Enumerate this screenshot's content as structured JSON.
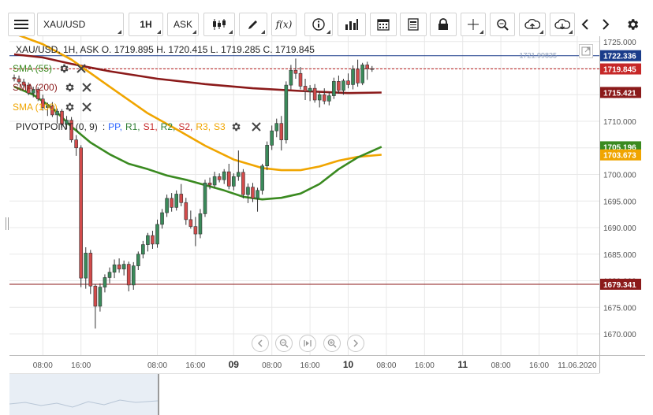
{
  "toolbar": {
    "symbol": "XAU/USD",
    "timeframe": "1H",
    "price_type": "ASK",
    "zoom_label": "Q"
  },
  "overlay": {
    "ohlc": "XAU/USD, 1H, ASK   O. 1719.895 H. 1720.415 L. 1719.285 C. 1719.845",
    "indicators": [
      {
        "label": "SMA (55)",
        "color": "#3a8a20"
      },
      {
        "label": "SMA (200)",
        "color": "#8b1a1a"
      },
      {
        "label": "SMA (100)",
        "color": "#f0a500"
      }
    ],
    "pivot": {
      "label": "PIVOTPOINT (0, 9)",
      "sep": ":",
      "parts": [
        {
          "text": "PP,",
          "color": "#2962ff"
        },
        {
          "text": "R1,",
          "color": "#2e7d32"
        },
        {
          "text": "S1,",
          "color": "#c62828"
        },
        {
          "text": "R2,",
          "color": "#2e7d32"
        },
        {
          "text": "S2,",
          "color": "#c62828"
        },
        {
          "text": "R3,",
          "color": "#f0a500"
        },
        {
          "text": "S3",
          "color": "#f0a500"
        }
      ]
    }
  },
  "chart_data": {
    "type": "candlestick",
    "symbol": "XAU/USD",
    "interval": "1H",
    "ylim": [
      1666,
      1726
    ],
    "y_ticks": [
      "1725.000",
      "1720.000",
      "1715.000",
      "1710.000",
      "1705.000",
      "1700.000",
      "1695.000",
      "1690.000",
      "1685.000",
      "1680.000",
      "1675.000",
      "1670.000"
    ],
    "x_ticks": [
      {
        "label": "08:00",
        "i": 6
      },
      {
        "label": "16:00",
        "i": 14
      },
      {
        "label": "08:00",
        "i": 30
      },
      {
        "label": "16:00",
        "i": 38
      },
      {
        "label": "09",
        "i": 46,
        "bold": true
      },
      {
        "label": "08:00",
        "i": 54
      },
      {
        "label": "16:00",
        "i": 62
      },
      {
        "label": "10",
        "i": 70,
        "bold": true
      },
      {
        "label": "08:00",
        "i": 78
      },
      {
        "label": "16:00",
        "i": 86
      },
      {
        "label": "11",
        "i": 94,
        "bold": true
      },
      {
        "label": "08:00",
        "i": 102
      },
      {
        "label": "16:00",
        "i": 110
      },
      {
        "label": "11.06.2020",
        "i": 118
      }
    ],
    "candles": [
      [
        1718.2,
        1718.8,
        1717.5,
        1718.0
      ],
      [
        1718.0,
        1718.6,
        1717.0,
        1717.4
      ],
      [
        1717.4,
        1718.0,
        1716.2,
        1716.8
      ],
      [
        1716.8,
        1717.3,
        1714.9,
        1715.3
      ],
      [
        1715.3,
        1716.5,
        1714.5,
        1716.0
      ],
      [
        1716.0,
        1716.4,
        1713.8,
        1714.2
      ],
      [
        1714.2,
        1715.0,
        1712.0,
        1712.6
      ],
      [
        1712.6,
        1713.5,
        1711.0,
        1712.9
      ],
      [
        1712.9,
        1713.6,
        1710.8,
        1711.2
      ],
      [
        1711.2,
        1712.4,
        1709.5,
        1711.9
      ],
      [
        1711.9,
        1712.3,
        1708.8,
        1709.4
      ],
      [
        1709.4,
        1711.0,
        1708.5,
        1710.2
      ],
      [
        1710.2,
        1710.8,
        1706.0,
        1706.5
      ],
      [
        1706.5,
        1707.4,
        1703.5,
        1705.0
      ],
      [
        1705.0,
        1705.5,
        1678.8,
        1680.5
      ],
      [
        1680.5,
        1686.3,
        1678.5,
        1685.2
      ],
      [
        1685.2,
        1685.8,
        1677.5,
        1679.0
      ],
      [
        1679.0,
        1679.4,
        1671.0,
        1675.2
      ],
      [
        1675.2,
        1679.5,
        1674.2,
        1678.8
      ],
      [
        1678.8,
        1681.2,
        1677.8,
        1680.6
      ],
      [
        1680.6,
        1682.5,
        1679.5,
        1681.6
      ],
      [
        1681.6,
        1684.0,
        1680.5,
        1683.0
      ],
      [
        1683.0,
        1684.2,
        1681.5,
        1682.2
      ],
      [
        1682.2,
        1683.8,
        1681.0,
        1683.1
      ],
      [
        1683.1,
        1683.6,
        1678.0,
        1679.2
      ],
      [
        1679.2,
        1683.5,
        1678.3,
        1682.8
      ],
      [
        1682.8,
        1685.5,
        1682.0,
        1685.0
      ],
      [
        1685.0,
        1687.5,
        1684.2,
        1686.8
      ],
      [
        1686.8,
        1689.0,
        1685.5,
        1688.5
      ],
      [
        1688.5,
        1689.4,
        1686.0,
        1686.9
      ],
      [
        1686.9,
        1691.5,
        1686.2,
        1690.6
      ],
      [
        1690.6,
        1693.5,
        1689.8,
        1692.8
      ],
      [
        1692.8,
        1696.2,
        1692.0,
        1695.5
      ],
      [
        1695.5,
        1696.5,
        1693.0,
        1693.8
      ],
      [
        1693.8,
        1697.0,
        1693.2,
        1696.3
      ],
      [
        1696.3,
        1698.2,
        1694.0,
        1694.7
      ],
      [
        1694.7,
        1695.6,
        1690.5,
        1691.5
      ],
      [
        1691.5,
        1693.2,
        1689.8,
        1690.2
      ],
      [
        1690.2,
        1692.0,
        1686.5,
        1688.8
      ],
      [
        1688.8,
        1693.5,
        1688.0,
        1692.6
      ],
      [
        1692.6,
        1699.0,
        1692.0,
        1698.4
      ],
      [
        1698.4,
        1699.4,
        1697.2,
        1698.0
      ],
      [
        1698.0,
        1700.5,
        1697.5,
        1699.6
      ],
      [
        1699.6,
        1700.2,
        1698.5,
        1699.0
      ],
      [
        1699.0,
        1701.0,
        1698.2,
        1700.5
      ],
      [
        1700.5,
        1702.0,
        1697.2,
        1697.8
      ],
      [
        1697.8,
        1700.2,
        1697.0,
        1699.6
      ],
      [
        1699.6,
        1704.5,
        1698.8,
        1700.4
      ],
      [
        1700.4,
        1701.0,
        1695.5,
        1696.2
      ],
      [
        1696.2,
        1698.3,
        1694.6,
        1697.6
      ],
      [
        1697.6,
        1698.4,
        1694.8,
        1695.5
      ],
      [
        1695.5,
        1697.5,
        1693.0,
        1697.0
      ],
      [
        1697.0,
        1702.0,
        1696.2,
        1701.6
      ],
      [
        1701.6,
        1706.2,
        1700.8,
        1705.5
      ],
      [
        1705.5,
        1709.2,
        1704.6,
        1708.2
      ],
      [
        1708.2,
        1710.5,
        1707.0,
        1709.6
      ],
      [
        1709.6,
        1711.0,
        1704.5,
        1706.5
      ],
      [
        1706.5,
        1717.5,
        1705.8,
        1716.8
      ],
      [
        1716.8,
        1720.6,
        1716.0,
        1719.6
      ],
      [
        1719.6,
        1721.8,
        1718.0,
        1719.0
      ],
      [
        1719.0,
        1720.2,
        1716.0,
        1716.6
      ],
      [
        1716.6,
        1718.0,
        1714.0,
        1715.6
      ],
      [
        1715.6,
        1716.8,
        1713.8,
        1716.2
      ],
      [
        1716.2,
        1717.0,
        1713.5,
        1714.0
      ],
      [
        1714.0,
        1715.6,
        1712.6,
        1715.0
      ],
      [
        1715.0,
        1716.2,
        1713.2,
        1713.8
      ],
      [
        1713.8,
        1715.5,
        1713.0,
        1714.8
      ],
      [
        1714.8,
        1718.2,
        1714.2,
        1717.5
      ],
      [
        1717.5,
        1718.6,
        1715.2,
        1715.8
      ],
      [
        1715.8,
        1718.0,
        1715.0,
        1717.6
      ],
      [
        1717.6,
        1719.0,
        1716.2,
        1716.9
      ],
      [
        1716.9,
        1720.5,
        1716.0,
        1719.8
      ],
      [
        1719.8,
        1721.6,
        1716.5,
        1717.2
      ],
      [
        1717.2,
        1721.0,
        1716.8,
        1720.6
      ],
      [
        1720.6,
        1721.2,
        1717.8,
        1719.9
      ],
      [
        1719.9,
        1720.4,
        1719.3,
        1719.8
      ]
    ],
    "sma200": [
      [
        0,
        1722.6
      ],
      [
        6,
        1722.0
      ],
      [
        12,
        1720.8
      ],
      [
        20,
        1719.4
      ],
      [
        30,
        1718.0
      ],
      [
        40,
        1717.0
      ],
      [
        50,
        1716.2
      ],
      [
        60,
        1715.7
      ],
      [
        70,
        1715.3
      ],
      [
        77,
        1715.4
      ]
    ],
    "sma100": [
      [
        0,
        1726.5
      ],
      [
        6,
        1724.5
      ],
      [
        12,
        1721.6
      ],
      [
        20,
        1716.5
      ],
      [
        28,
        1711.5
      ],
      [
        34,
        1708.5
      ],
      [
        40,
        1705.4
      ],
      [
        46,
        1702.8
      ],
      [
        52,
        1701.2
      ],
      [
        56,
        1700.8
      ],
      [
        60,
        1700.8
      ],
      [
        64,
        1701.5
      ],
      [
        68,
        1702.6
      ],
      [
        72,
        1703.3
      ],
      [
        77,
        1703.7
      ]
    ],
    "sma55": [
      [
        0,
        1716.5
      ],
      [
        4,
        1715.0
      ],
      [
        8,
        1712.5
      ],
      [
        12,
        1709.0
      ],
      [
        16,
        1706.0
      ],
      [
        20,
        1703.8
      ],
      [
        24,
        1702.0
      ],
      [
        28,
        1701.0
      ],
      [
        32,
        1699.8
      ],
      [
        36,
        1699.0
      ],
      [
        40,
        1698.0
      ],
      [
        44,
        1697.0
      ],
      [
        48,
        1695.8
      ],
      [
        52,
        1695.3
      ],
      [
        56,
        1695.6
      ],
      [
        60,
        1696.4
      ],
      [
        64,
        1698.2
      ],
      [
        68,
        1701.0
      ],
      [
        72,
        1703.2
      ],
      [
        77,
        1705.2
      ]
    ],
    "h_lines": [
      {
        "price": 1722.336,
        "color": "#1a3c8a",
        "dashed": false,
        "label": "1722.336",
        "mid_label": "1721.99835"
      },
      {
        "price": 1719.845,
        "color": "#c62828",
        "dashed": true,
        "label": "1719.845"
      },
      {
        "price": 1715.421,
        "color": "#8b1a1a",
        "dashed": false,
        "label": "1715.421",
        "line": false
      },
      {
        "price": 1705.196,
        "color": "#3a8a20",
        "dashed": false,
        "label": "1705.196",
        "line": false
      },
      {
        "price": 1703.673,
        "color": "#f0a500",
        "dashed": false,
        "label": "1703.673",
        "line": false
      },
      {
        "price": 1679.341,
        "color": "#8b1a1a",
        "dashed": false,
        "label": "1679.341"
      }
    ]
  },
  "colors": {
    "bull": "#3a8a5a",
    "bear": "#d24b4b",
    "grid": "#e8e8e8",
    "axis_text": "#555555"
  }
}
